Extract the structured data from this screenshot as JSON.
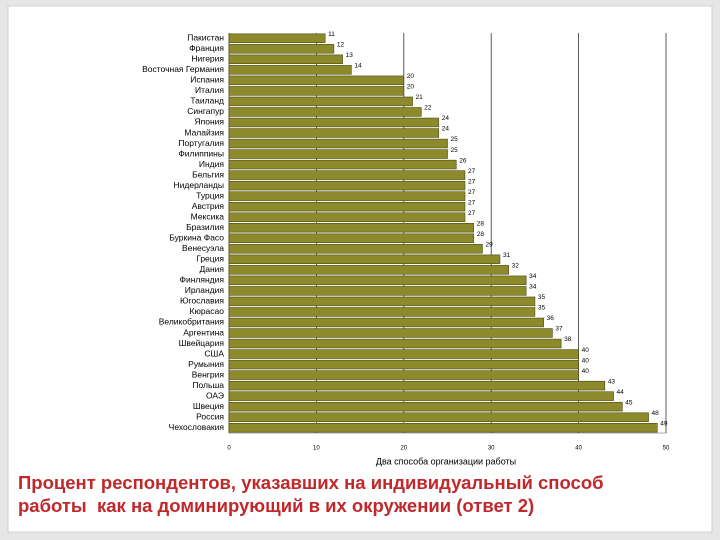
{
  "chart_data": {
    "type": "barh",
    "categories": [
      "Пакистан",
      "Франция",
      "Нигерия",
      "Восточная Германия",
      "Испания",
      "Италия",
      "Таиланд",
      "Сингапур",
      "Япония",
      "Малайзия",
      "Португалия",
      "Филиппины",
      "Индия",
      "Бельгия",
      "Нидерланды",
      "Турция",
      "Австрия",
      "Мексика",
      "Бразилия",
      "Буркина Фасо",
      "Венесуэла",
      "Греция",
      "Дания",
      "Финляндия",
      "Ирландия",
      "Югославия",
      "Кюрасао",
      "Великобритания",
      "Аргентина",
      "Швейцария",
      "США",
      "Румыния",
      "Венгрия",
      "Польша",
      "ОАЭ",
      "Швеция",
      "Россия",
      "Чехословакия"
    ],
    "values": [
      11,
      12,
      13,
      14,
      20,
      20,
      21,
      22,
      24,
      24,
      25,
      25,
      26,
      27,
      27,
      27,
      27,
      27,
      28,
      28,
      29,
      31,
      32,
      34,
      34,
      35,
      35,
      36,
      37,
      38,
      40,
      40,
      40,
      43,
      44,
      45,
      48,
      49
    ],
    "color": "#8c8a2b",
    "xlim": [
      0,
      50
    ],
    "xticks": [
      0,
      10,
      20,
      30,
      40,
      50
    ],
    "grid": true,
    "xlabel": "Два способа организации работы",
    "caption": [
      "Процент респондентов, указавших на индивидуальный способ",
      "работы  как на доминирующий в их окружении (ответ 2)"
    ]
  }
}
